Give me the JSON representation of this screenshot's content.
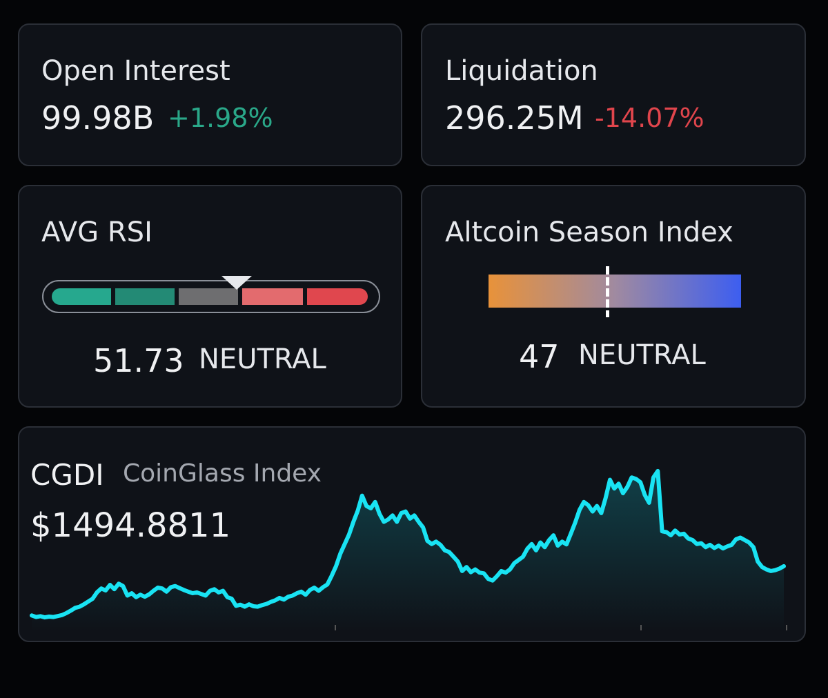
{
  "colors": {
    "up": "#2aa889",
    "down": "#e0454c",
    "line": "#19e3f3",
    "rsi_segments": [
      "#26a88e",
      "#238a75",
      "#6e6e70",
      "#e36b6e",
      "#e0474e"
    ],
    "alt_gradient": [
      "#e8923a",
      "#a08aa0",
      "#3d5ef0"
    ]
  },
  "open_interest": {
    "title": "Open Interest",
    "value": "99.98B",
    "change": "+1.98%"
  },
  "liquidation": {
    "title": "Liquidation",
    "value": "296.25M",
    "change": "-14.07%"
  },
  "avg_rsi": {
    "title": "AVG RSI",
    "value": "51.73",
    "status": "NEUTRAL",
    "pointer_fraction": 0.58
  },
  "altcoin_season": {
    "title": "Altcoin Season Index",
    "value": "47",
    "status": "NEUTRAL",
    "range": [
      0,
      100
    ]
  },
  "cgdi": {
    "ticker": "CGDI",
    "name": "CoinGlass Index",
    "price": "$1494.8811"
  },
  "chart_data": {
    "type": "area",
    "title": "",
    "xlabel": "",
    "ylabel": "",
    "grid": false,
    "legend": "none",
    "ylim": [
      850,
      2850
    ],
    "series": [
      {
        "values": [
          900,
          880,
          890,
          875,
          885,
          880,
          892,
          905,
          930,
          960,
          995,
          1010,
          1040,
          1075,
          1110,
          1190,
          1240,
          1215,
          1285,
          1230,
          1300,
          1270,
          1150,
          1180,
          1130,
          1160,
          1135,
          1165,
          1210,
          1250,
          1240,
          1200,
          1255,
          1270,
          1245,
          1220,
          1200,
          1180,
          1190,
          1170,
          1150,
          1210,
          1230,
          1190,
          1210,
          1130,
          1110,
          1020,
          1035,
          1010,
          1040,
          1015,
          1010,
          1030,
          1045,
          1070,
          1090,
          1120,
          1100,
          1135,
          1150,
          1180,
          1200,
          1160,
          1220,
          1250,
          1210,
          1255,
          1290,
          1400,
          1520,
          1680,
          1800,
          1920,
          2080,
          2220,
          2410,
          2280,
          2250,
          2330,
          2180,
          2080,
          2110,
          2160,
          2080,
          2190,
          2210,
          2120,
          2160,
          2080,
          2010,
          1840,
          1800,
          1830,
          1790,
          1720,
          1700,
          1640,
          1580,
          1460,
          1510,
          1445,
          1480,
          1440,
          1430,
          1360,
          1340,
          1395,
          1460,
          1440,
          1480,
          1560,
          1600,
          1640,
          1740,
          1800,
          1720,
          1820,
          1760,
          1850,
          1910,
          1780,
          1830,
          1795,
          1930,
          2070,
          2230,
          2330,
          2290,
          2210,
          2280,
          2190,
          2380,
          2610,
          2500,
          2560,
          2440,
          2520,
          2640,
          2620,
          2580,
          2420,
          2320,
          2640,
          2720,
          1960,
          1950,
          1910,
          1970,
          1920,
          1930,
          1870,
          1850,
          1800,
          1810,
          1760,
          1790,
          1750,
          1780,
          1745,
          1770,
          1790,
          1860,
          1880,
          1850,
          1820,
          1760,
          1580,
          1510,
          1480,
          1460,
          1470,
          1490,
          1520
        ]
      }
    ]
  }
}
